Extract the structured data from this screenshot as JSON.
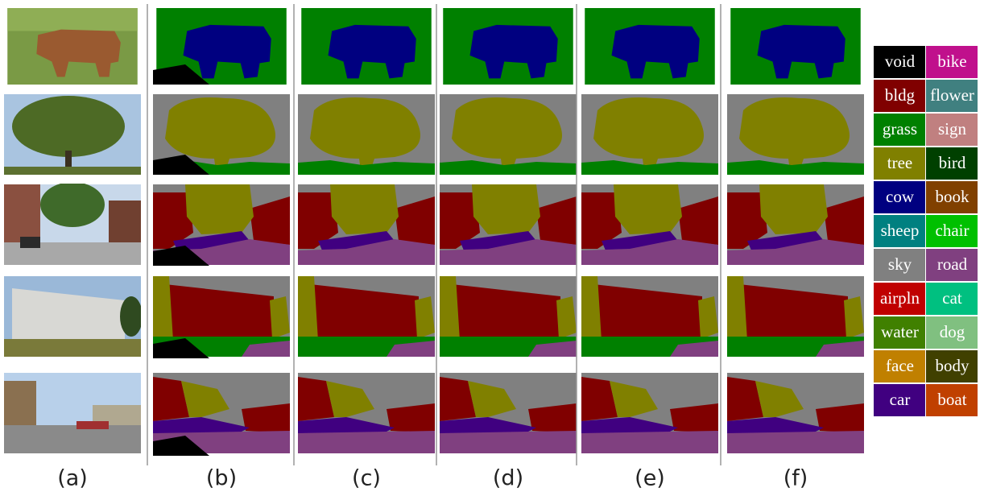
{
  "columns": [
    "(a)",
    "(b)",
    "(c)",
    "(d)",
    "(e)",
    "(f)"
  ],
  "legend": [
    {
      "label": "void",
      "color": "#000000"
    },
    {
      "label": "bike",
      "color": "#c0108c"
    },
    {
      "label": "bldg",
      "color": "#800000"
    },
    {
      "label": "flower",
      "color": "#408080"
    },
    {
      "label": "grass",
      "color": "#008000"
    },
    {
      "label": "sign",
      "color": "#c08080"
    },
    {
      "label": "tree",
      "color": "#808000"
    },
    {
      "label": "bird",
      "color": "#004000"
    },
    {
      "label": "cow",
      "color": "#000080"
    },
    {
      "label": "book",
      "color": "#804000"
    },
    {
      "label": "sheep",
      "color": "#008080"
    },
    {
      "label": "chair",
      "color": "#00c000"
    },
    {
      "label": "sky",
      "color": "#808080"
    },
    {
      "label": "road",
      "color": "#804080"
    },
    {
      "label": "airpln",
      "color": "#c00000"
    },
    {
      "label": "cat",
      "color": "#00c080"
    },
    {
      "label": "water",
      "color": "#408000"
    },
    {
      "label": "dog",
      "color": "#80c080"
    },
    {
      "label": "face",
      "color": "#c08000"
    },
    {
      "label": "body",
      "color": "#404000"
    },
    {
      "label": "car",
      "color": "#400080"
    },
    {
      "label": "boat",
      "color": "#c04000"
    }
  ]
}
